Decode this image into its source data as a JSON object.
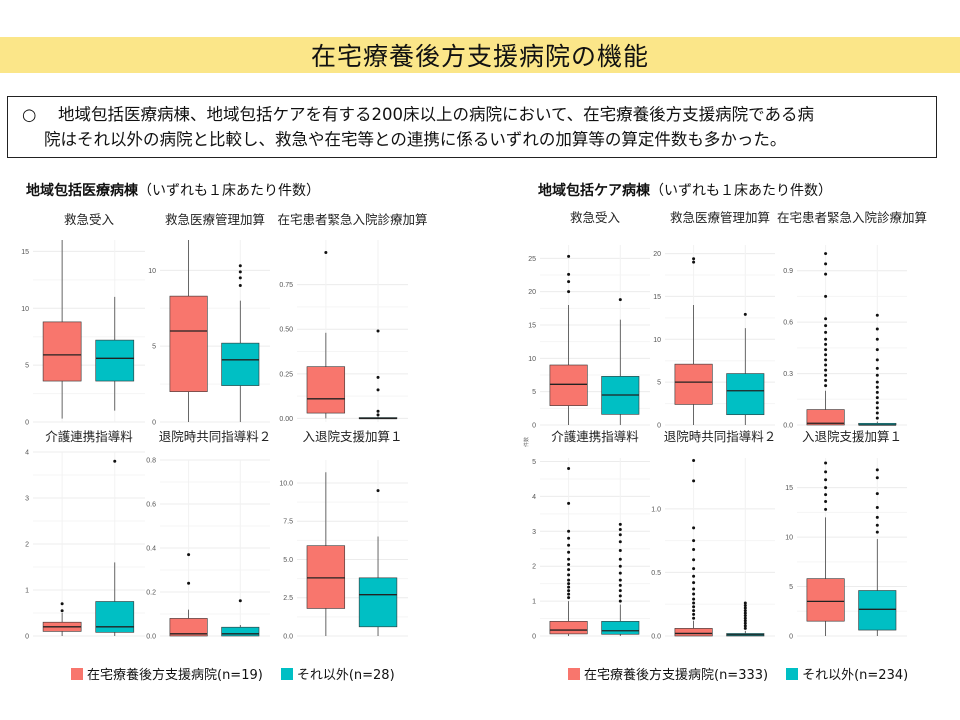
{
  "page": {
    "title": "在宅療養後方支援病院の機能",
    "summary_bullet": "○",
    "summary_line1": "地域包括医療病棟、地域包括ケアを有する200床以上の病院において、在宅療養後方支援病院である病",
    "summary_line2": "院はそれ以外の病院と比較し、救急や在宅等との連携に係るいずれの加算等の算定件数も多かった。"
  },
  "colors": {
    "supporting": "#f8766d",
    "other": "#00bfc4",
    "title_band": "#fbe689"
  },
  "sections": [
    {
      "title_bold": "地域包括医療病棟",
      "title_rest": "（いずれも１床あたり件数）",
      "legend": [
        {
          "label": "在宅療養後方支援病院(n=19)",
          "color": "#f8766d"
        },
        {
          "label": "それ以外(n=28)",
          "color": "#00bfc4"
        }
      ]
    },
    {
      "title_bold": "地域包括ケア病棟",
      "title_rest": "（いずれも１床あたり件数）",
      "legend": [
        {
          "label": "在宅療養後方支援病院(n=333)",
          "color": "#f8766d"
        },
        {
          "label": "それ以外(n=234)",
          "color": "#00bfc4"
        }
      ],
      "y_axis_stub": "件数"
    }
  ],
  "chart_data": [
    {
      "type": "boxplot",
      "section": 0,
      "title": "救急受入",
      "ylim": [
        0,
        16
      ],
      "ticks": [
        0,
        5,
        10,
        15
      ],
      "boxes": [
        {
          "group": "在宅療養後方支援病院",
          "whisker_low": 0.3,
          "q1": 3.6,
          "median": 5.9,
          "q3": 8.8,
          "whisker_high": 16,
          "outliers": []
        },
        {
          "group": "それ以外",
          "whisker_low": 1.0,
          "q1": 3.6,
          "median": 5.6,
          "q3": 7.2,
          "whisker_high": 11.0,
          "outliers": []
        }
      ]
    },
    {
      "type": "boxplot",
      "section": 0,
      "title": "救急医療管理加算",
      "ylim": [
        0,
        12
      ],
      "ticks": [
        0,
        5,
        10
      ],
      "boxes": [
        {
          "group": "在宅療養後方支援病院",
          "whisker_low": 0,
          "q1": 2.0,
          "median": 6.0,
          "q3": 8.3,
          "whisker_high": 12.0,
          "outliers": []
        },
        {
          "group": "それ以外",
          "whisker_low": 0,
          "q1": 2.4,
          "median": 4.1,
          "q3": 5.2,
          "whisker_high": 8.0,
          "outliers": [
            9.0,
            9.5,
            9.9,
            10.3
          ]
        }
      ]
    },
    {
      "type": "boxplot",
      "section": 0,
      "title": "在宅患者緊急入院診療加算",
      "ylim": [
        -0.02,
        1.0
      ],
      "ticks": [
        0.0,
        0.25,
        0.5,
        0.75
      ],
      "boxes": [
        {
          "group": "在宅療養後方支援病院",
          "whisker_low": 0,
          "q1": 0.03,
          "median": 0.11,
          "q3": 0.29,
          "whisker_high": 0.48,
          "outliers": [
            0.93
          ]
        },
        {
          "group": "それ以外",
          "whisker_low": 0,
          "q1": 0,
          "median": 0,
          "q3": 0.005,
          "whisker_high": 0.01,
          "outliers": [
            0.02,
            0.04,
            0.16,
            0.23,
            0.49
          ]
        }
      ]
    },
    {
      "type": "boxplot",
      "section": 0,
      "title": "介護連携指導料",
      "ylim": [
        0,
        4
      ],
      "ticks": [
        0,
        1,
        2,
        3,
        4
      ],
      "boxes": [
        {
          "group": "在宅療養後方支援病院",
          "whisker_low": 0,
          "q1": 0.1,
          "median": 0.2,
          "q3": 0.3,
          "whisker_high": 0.5,
          "outliers": [
            0.55,
            0.7
          ]
        },
        {
          "group": "それ以外",
          "whisker_low": 0,
          "q1": 0.08,
          "median": 0.2,
          "q3": 0.75,
          "whisker_high": 1.6,
          "outliers": [
            3.8
          ]
        }
      ]
    },
    {
      "type": "boxplot",
      "section": 0,
      "title": "退院時共同指導料２",
      "ylim": [
        0,
        0.8
      ],
      "ticks": [
        0.0,
        0.2,
        0.4,
        0.6,
        0.8
      ],
      "boxes": [
        {
          "group": "在宅療養後方支援病院",
          "whisker_low": 0,
          "q1": 0.0,
          "median": 0.01,
          "q3": 0.08,
          "whisker_high": 0.12,
          "outliers": [
            0.24,
            0.37
          ]
        },
        {
          "group": "それ以外",
          "whisker_low": 0,
          "q1": 0.0,
          "median": 0.01,
          "q3": 0.04,
          "whisker_high": 0.05,
          "outliers": [
            0.16
          ]
        }
      ]
    },
    {
      "type": "boxplot",
      "section": 0,
      "title": "入退院支援加算１",
      "ylim": [
        0,
        11.5
      ],
      "ticks": [
        0.0,
        2.5,
        5.0,
        7.5,
        10.0
      ],
      "boxes": [
        {
          "group": "在宅療養後方支援病院",
          "whisker_low": 0,
          "q1": 1.8,
          "median": 3.8,
          "q3": 5.9,
          "whisker_high": 10.7,
          "outliers": []
        },
        {
          "group": "それ以外",
          "whisker_low": 0,
          "q1": 0.6,
          "median": 2.7,
          "q3": 3.8,
          "whisker_high": 6.5,
          "outliers": [
            9.5
          ]
        }
      ]
    },
    {
      "type": "boxplot",
      "section": 1,
      "title": "救急受入",
      "ylim": [
        0,
        27
      ],
      "ticks": [
        0,
        5,
        10,
        15,
        20,
        25
      ],
      "boxes": [
        {
          "group": "在宅療養後方支援病院",
          "whisker_low": 0,
          "q1": 2.9,
          "median": 6.1,
          "q3": 9.0,
          "whisker_high": 18,
          "outliers": [
            20.0,
            21.5,
            22.6,
            25.3
          ]
        },
        {
          "group": "それ以外",
          "whisker_low": 0,
          "q1": 1.6,
          "median": 4.5,
          "q3": 7.3,
          "whisker_high": 15.8,
          "outliers": [
            18.8
          ]
        }
      ]
    },
    {
      "type": "boxplot",
      "section": 1,
      "title": "救急医療管理加算",
      "ylim": [
        0,
        21
      ],
      "ticks": [
        0,
        5,
        10,
        15,
        20
      ],
      "boxes": [
        {
          "group": "在宅療養後方支援病院",
          "whisker_low": 0,
          "q1": 2.4,
          "median": 5.0,
          "q3": 7.1,
          "whisker_high": 14,
          "outliers": [
            19.0,
            19.4
          ]
        },
        {
          "group": "それ以外",
          "whisker_low": 0,
          "q1": 1.2,
          "median": 4.0,
          "q3": 6.0,
          "whisker_high": 11.3,
          "outliers": [
            12.9
          ]
        }
      ]
    },
    {
      "type": "boxplot",
      "section": 1,
      "title": "在宅患者緊急入院診療加算",
      "ylim": [
        0,
        1.05
      ],
      "ticks": [
        0.0,
        0.3,
        0.6,
        0.9
      ],
      "boxes": [
        {
          "group": "在宅療養後方支援病院",
          "whisker_low": 0,
          "q1": 0,
          "median": 0.01,
          "q3": 0.09,
          "whisker_high": 0.2,
          "outliers": [
            0.23,
            0.26,
            0.29,
            0.32,
            0.35,
            0.38,
            0.41,
            0.44,
            0.47,
            0.5,
            0.54,
            0.58,
            0.62,
            0.75,
            0.88,
            0.94,
            1.0
          ]
        },
        {
          "group": "それ以外",
          "whisker_low": 0,
          "q1": 0,
          "median": 0,
          "q3": 0.01,
          "whisker_high": 0.02,
          "outliers": [
            0.04,
            0.07,
            0.1,
            0.13,
            0.16,
            0.19,
            0.22,
            0.25,
            0.29,
            0.33,
            0.38,
            0.44,
            0.5,
            0.56,
            0.64
          ]
        }
      ]
    },
    {
      "type": "boxplot",
      "section": 1,
      "title": "介護連携指導料",
      "ylim": [
        0,
        5.1
      ],
      "ticks": [
        0,
        1,
        2,
        3,
        4,
        5
      ],
      "boxes": [
        {
          "group": "在宅療養後方支援病院",
          "whisker_low": 0,
          "q1": 0.06,
          "median": 0.17,
          "q3": 0.42,
          "whisker_high": 1.0,
          "outliers": [
            1.1,
            1.2,
            1.3,
            1.4,
            1.5,
            1.6,
            1.75,
            1.9,
            2.05,
            2.2,
            2.4,
            2.6,
            2.8,
            3.0,
            3.8,
            4.8
          ]
        },
        {
          "group": "それ以外",
          "whisker_low": 0,
          "q1": 0.05,
          "median": 0.15,
          "q3": 0.42,
          "whisker_high": 0.9,
          "outliers": [
            1.0,
            1.15,
            1.3,
            1.45,
            1.6,
            1.8,
            2.0,
            2.2,
            2.45,
            2.7,
            2.9,
            3.05,
            3.2
          ]
        }
      ]
    },
    {
      "type": "boxplot",
      "section": 1,
      "title": "退院時共同指導料２",
      "ylim": [
        0,
        1.4
      ],
      "ticks": [
        0.0,
        0.5,
        1.0
      ],
      "boxes": [
        {
          "group": "在宅療養後方支援病院",
          "whisker_low": 0,
          "q1": 0,
          "median": 0.02,
          "q3": 0.06,
          "whisker_high": 0.12,
          "outliers": [
            0.14,
            0.17,
            0.2,
            0.23,
            0.26,
            0.29,
            0.33,
            0.37,
            0.42,
            0.47,
            0.53,
            0.6,
            0.68,
            0.75,
            0.85,
            1.22,
            1.38
          ]
        },
        {
          "group": "それ以外",
          "whisker_low": 0,
          "q1": 0,
          "median": 0.01,
          "q3": 0.02,
          "whisker_high": 0.04,
          "outliers": [
            0.06,
            0.08,
            0.1,
            0.12,
            0.14,
            0.16,
            0.18,
            0.2,
            0.22,
            0.24,
            0.26
          ]
        }
      ]
    },
    {
      "type": "boxplot",
      "section": 1,
      "title": "入退院支援加算１",
      "ylim": [
        0,
        18
      ],
      "ticks": [
        0,
        5,
        10,
        15
      ],
      "boxes": [
        {
          "group": "在宅療養後方支援病院",
          "whisker_low": 0,
          "q1": 1.5,
          "median": 3.5,
          "q3": 5.8,
          "whisker_high": 12,
          "outliers": [
            12.8,
            13.6,
            14.3,
            15.0,
            15.8,
            16.6,
            17.5
          ]
        },
        {
          "group": "それ以外",
          "whisker_low": 0,
          "q1": 0.6,
          "median": 2.7,
          "q3": 4.6,
          "whisker_high": 9.8,
          "outliers": [
            10.5,
            11.2,
            12.0,
            13.0,
            14.4,
            16.0,
            16.8
          ]
        }
      ]
    }
  ]
}
